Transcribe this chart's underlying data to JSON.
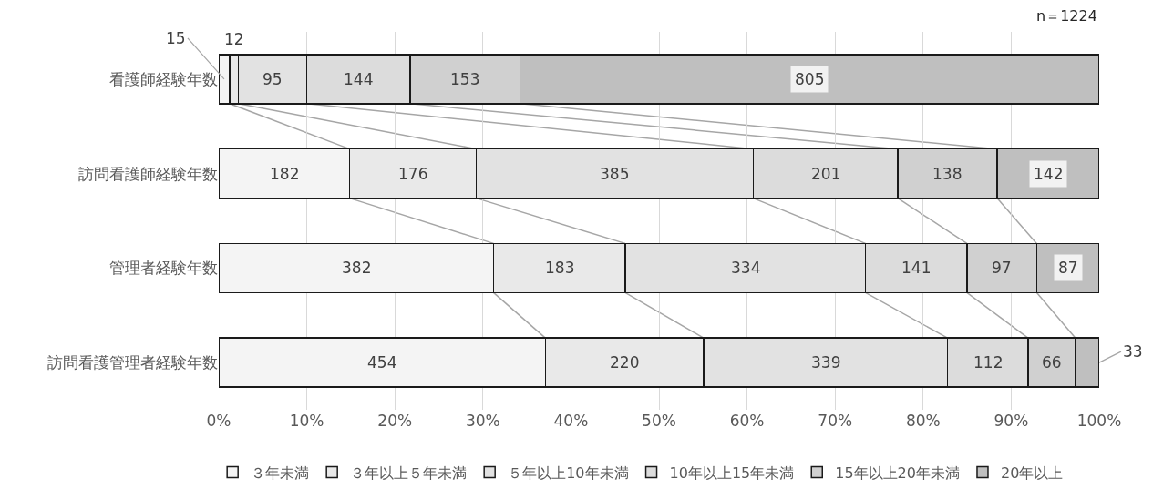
{
  "chart_data": {
    "type": "bar",
    "orientation": "horizontal",
    "stacked": true,
    "subtitle": "n＝1224",
    "categories": [
      "看護師経験年数",
      "訪問看護師経験年数",
      "管理者経験年数",
      "訪問看護管理者経験年数"
    ],
    "series": [
      {
        "name": "３年未満",
        "color": "#f4f4f4",
        "values": [
          1.23,
          14.87,
          31.21,
          37.09
        ]
      },
      {
        "name": "３年以上５年未満",
        "color": "#e9e9e9",
        "values": [
          0.98,
          14.38,
          14.95,
          17.97
        ]
      },
      {
        "name": "５年以上10年未満",
        "color": "#e2e2e2",
        "values": [
          7.76,
          31.45,
          27.29,
          27.7
        ]
      },
      {
        "name": "10年以上15年未満",
        "color": "#dcdcdc",
        "values": [
          11.76,
          16.42,
          11.52,
          9.15
        ]
      },
      {
        "name": "15年以上20年未満",
        "color": "#d0d0d0",
        "values": [
          12.5,
          11.28,
          7.92,
          5.39
        ]
      },
      {
        "name": "20年以上",
        "color": "#bfbfbf",
        "values": [
          65.77,
          11.6,
          7.11,
          2.7
        ]
      }
    ],
    "xlim": [
      0,
      100
    ],
    "xticks": [
      {
        "value": 0,
        "label": "0%"
      },
      {
        "value": 10,
        "label": "10%"
      },
      {
        "value": 20,
        "label": "20%"
      },
      {
        "value": 30,
        "label": "30%"
      },
      {
        "value": 40,
        "label": "40%"
      },
      {
        "value": 50,
        "label": "50%"
      },
      {
        "value": 60,
        "label": "60%"
      },
      {
        "value": 70,
        "label": "70%"
      },
      {
        "value": 80,
        "label": "80%"
      },
      {
        "value": 90,
        "label": "90%"
      },
      {
        "value": 100,
        "label": "100%"
      }
    ],
    "grid": "x",
    "legend": "bottom",
    "annotations": [
      "15",
      "12",
      "95",
      "144",
      "153",
      "805",
      "182",
      "176",
      "385",
      "201",
      "138",
      "142",
      "382",
      "183",
      "334",
      "141",
      "97",
      "87",
      "454",
      "220",
      "339",
      "112",
      "66",
      {
        "text": "33",
        "x": 100,
        "y": "訪問看護管理者経験年数"
      }
    ]
  }
}
